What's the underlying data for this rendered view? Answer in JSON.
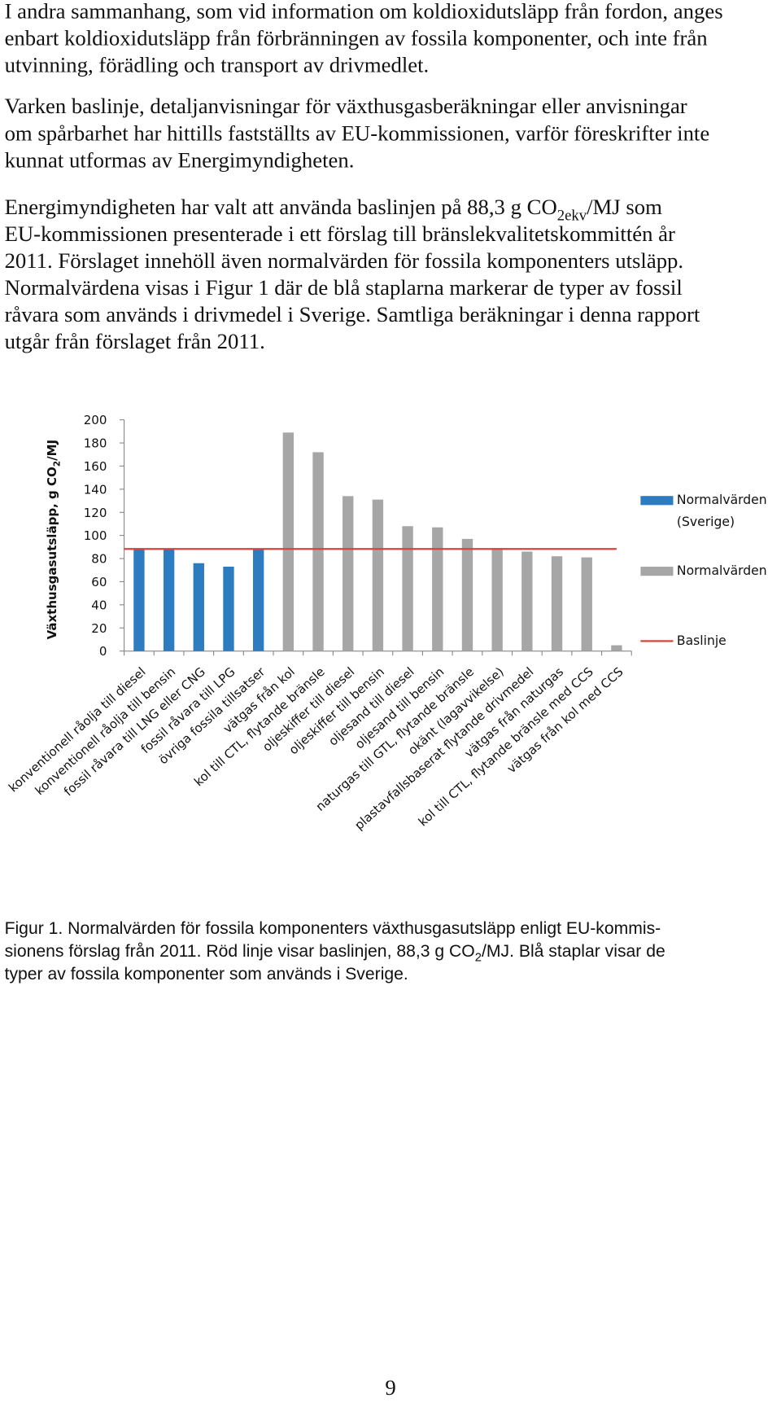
{
  "paragraphs": [
    {
      "lines": [
        "I andra sammanhang, som vid information om koldioxidutsläpp från fordon, anges",
        "enbart koldioxidutsläpp från förbränningen av fossila komponenter, och inte från",
        "utvinning, förädling och transport av drivmedlet."
      ]
    },
    {
      "lines": [
        "Varken baslinje, detaljanvisningar för växthusgasberäkningar eller anvisningar",
        "om spårbarhet har hittills fastställts av EU-kommissionen, varför föreskrifter inte",
        "kunnat utformas av Energimyndigheten."
      ]
    },
    {
      "lines": [
        [
          "Energimyndigheten har valt att använda baslinjen på 88,3 g CO",
          "2ekv",
          "/MJ som"
        ],
        "EU-kommissionen presenterade i ett förslag till bränslekvalitetskommittén år",
        "2011. Förslaget innehöll även normalvärden för fossila komponenters utsläpp.",
        "Normalvärdena visas i Figur 1 där de blå staplarna markerar de typer av fossil",
        "råvara som används i drivmedel i Sverige. Samtliga beräkningar i denna rapport",
        "utgår från förslaget från 2011."
      ]
    }
  ],
  "chart_data": {
    "type": "bar",
    "y_label": [
      "Växthusgasutsläpp, g CO",
      "2",
      "/MJ"
    ],
    "categories": [
      "konventionell råolja till diesel",
      "konventionell råolja till bensin",
      "fossil råvara till LNG eller CNG",
      "fossil råvara till LPG",
      "övriga fossila tillsatser",
      "vätgas från kol",
      "kol till CTL, flytande bränsle",
      "oljeskiffer till diesel",
      "oljeskiffer till bensin",
      "oljesand till diesel",
      "oljesand till bensin",
      "naturgas till GTL, flytande bränsle",
      "okänt (lagavvikelse)",
      "plastavfallsbaserat flytande drivmedel",
      "vätgas från naturgas",
      "kol till CTL, flytande bränsle med CCS",
      "vätgas från kol med CCS"
    ],
    "series": [
      {
        "name": "Normalvärden (Sverige)",
        "color": "#2e7cc0",
        "values": [
          89,
          88,
          76,
          73,
          88,
          null,
          null,
          null,
          null,
          null,
          null,
          null,
          null,
          null,
          null,
          null,
          null
        ]
      },
      {
        "name": "Normalvärden",
        "color": "#a6a6a6",
        "values": [
          null,
          null,
          null,
          null,
          null,
          189,
          172,
          134,
          131,
          108,
          107,
          97,
          89,
          86,
          82,
          81,
          5
        ]
      }
    ],
    "baseline": {
      "name": "Baslinje",
      "value": 88.3,
      "color": "#d9433b"
    },
    "ylim": [
      0,
      200
    ],
    "yticks": [
      0,
      20,
      40,
      60,
      80,
      100,
      120,
      140,
      160,
      180,
      200
    ],
    "legend": "right"
  },
  "caption": {
    "lines": [
      "Figur 1. Normalvärden för fossila komponenters växthusgasutsläpp enligt EU-kommis-",
      [
        "sionens förslag från 2011. Röd linje visar baslinjen, 88,3 g CO",
        "2",
        "/MJ. Blå staplar visar de"
      ],
      "typer av fossila komponenter som används i Sverige."
    ]
  },
  "page_number": "9"
}
